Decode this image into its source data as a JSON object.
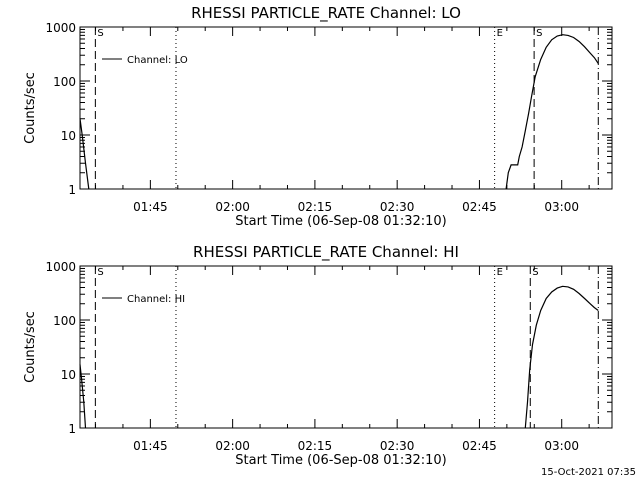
{
  "footer": {
    "timestamp": "15-Oct-2021 07:35"
  },
  "chart_data": [
    {
      "type": "line",
      "title": "RHESSI PARTICLE_RATE Channel: LO",
      "xlabel": "Start Time (06-Sep-08 01:32:10)",
      "ylabel": "Counts/sec",
      "y_scale": "log",
      "xlim_minutes": [
        0,
        97
      ],
      "ylim": [
        1,
        1000
      ],
      "x_ticks": [
        {
          "label": "01:45",
          "minutes": 12.83
        },
        {
          "label": "02:00",
          "minutes": 27.83
        },
        {
          "label": "02:15",
          "minutes": 42.83
        },
        {
          "label": "02:30",
          "minutes": 57.83
        },
        {
          "label": "02:45",
          "minutes": 72.83
        },
        {
          "label": "03:00",
          "minutes": 87.83
        }
      ],
      "y_ticks": [
        {
          "label": "1",
          "value": 1
        },
        {
          "label": "10",
          "value": 10
        },
        {
          "label": "100",
          "value": 100
        },
        {
          "label": "1000",
          "value": 1000
        }
      ],
      "legend": {
        "label": "Channel: LO",
        "position": "top-left"
      },
      "series": [
        {
          "name": "Channel: LO",
          "segments": [
            [
              [
                0.0,
                20
              ],
              [
                0.4,
                10
              ],
              [
                1.0,
                3
              ],
              [
                1.6,
                1
              ]
            ],
            [
              [
                77.7,
                1
              ],
              [
                78.1,
                2
              ],
              [
                78.6,
                2.8
              ],
              [
                79.8,
                2.8
              ],
              [
                80.1,
                4
              ],
              [
                80.6,
                6
              ],
              [
                81.2,
                12
              ],
              [
                81.8,
                25
              ],
              [
                82.3,
                50
              ],
              [
                83.0,
                120
              ],
              [
                84.0,
                250
              ],
              [
                85.0,
                420
              ],
              [
                86.0,
                580
              ],
              [
                87.0,
                680
              ],
              [
                88.0,
                720
              ],
              [
                89.0,
                700
              ],
              [
                90.0,
                640
              ],
              [
                91.0,
                540
              ],
              [
                92.0,
                430
              ],
              [
                93.0,
                330
              ],
              [
                93.8,
                270
              ],
              [
                94.5,
                210
              ]
            ]
          ]
        }
      ],
      "markers": [
        {
          "label": "S",
          "minutes": 2.8,
          "style": "dashed"
        },
        {
          "label": "",
          "minutes": 17.5,
          "style": "dotted"
        },
        {
          "label": "E",
          "minutes": 75.6,
          "style": "dotted"
        },
        {
          "label": "S",
          "minutes": 82.8,
          "style": "dashed"
        },
        {
          "label": "",
          "minutes": 94.5,
          "style": "dashdot"
        }
      ]
    },
    {
      "type": "line",
      "title": "RHESSI PARTICLE_RATE Channel: HI",
      "xlabel": "Start Time (06-Sep-08 01:32:10)",
      "ylabel": "Counts/sec",
      "y_scale": "log",
      "xlim_minutes": [
        0,
        97
      ],
      "ylim": [
        1,
        1000
      ],
      "x_ticks": [
        {
          "label": "01:45",
          "minutes": 12.83
        },
        {
          "label": "02:00",
          "minutes": 27.83
        },
        {
          "label": "02:15",
          "minutes": 42.83
        },
        {
          "label": "02:30",
          "minutes": 57.83
        },
        {
          "label": "02:45",
          "minutes": 72.83
        },
        {
          "label": "03:00",
          "minutes": 87.83
        }
      ],
      "y_ticks": [
        {
          "label": "1",
          "value": 1
        },
        {
          "label": "10",
          "value": 10
        },
        {
          "label": "100",
          "value": 100
        },
        {
          "label": "1000",
          "value": 1000
        }
      ],
      "legend": {
        "label": "Channel: HI",
        "position": "top-left"
      },
      "series": [
        {
          "name": "Channel: HI",
          "segments": [
            [
              [
                0.0,
                15
              ],
              [
                0.3,
                8
              ],
              [
                0.7,
                3
              ],
              [
                1.0,
                1
              ]
            ],
            [
              [
                81.2,
                1
              ],
              [
                81.6,
                3
              ],
              [
                82.0,
                12
              ],
              [
                82.5,
                35
              ],
              [
                83.2,
                80
              ],
              [
                84.0,
                150
              ],
              [
                85.0,
                250
              ],
              [
                86.0,
                330
              ],
              [
                87.0,
                390
              ],
              [
                88.0,
                420
              ],
              [
                89.0,
                410
              ],
              [
                90.0,
                370
              ],
              [
                91.0,
                310
              ],
              [
                92.0,
                250
              ],
              [
                93.0,
                200
              ],
              [
                93.8,
                170
              ],
              [
                94.5,
                150
              ]
            ]
          ]
        }
      ],
      "markers": [
        {
          "label": "S",
          "minutes": 2.8,
          "style": "dashed"
        },
        {
          "label": "",
          "minutes": 17.5,
          "style": "dotted"
        },
        {
          "label": "E",
          "minutes": 75.6,
          "style": "dotted"
        },
        {
          "label": "S",
          "minutes": 82.1,
          "style": "dashed"
        },
        {
          "label": "",
          "minutes": 94.5,
          "style": "dashdot"
        }
      ]
    }
  ]
}
